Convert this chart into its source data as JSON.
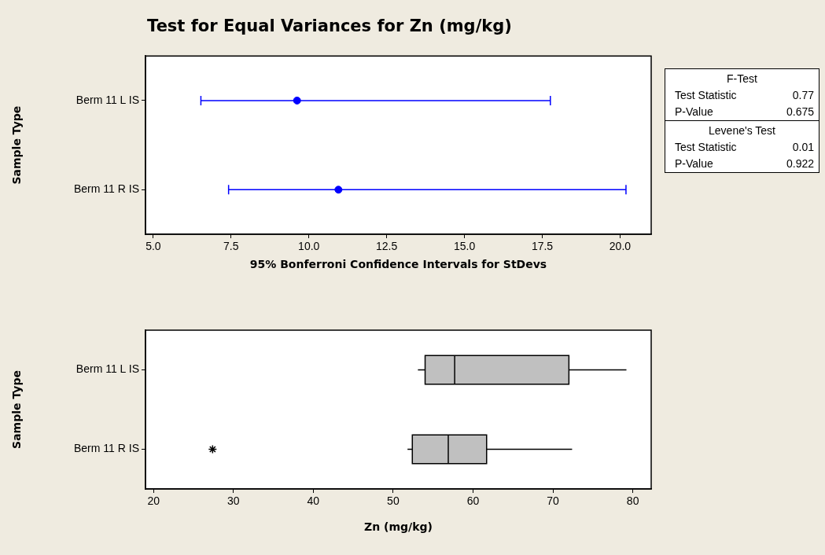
{
  "chart_data": [
    {
      "type": "scatter",
      "title": "Test for Equal Variances for Zn (mg/kg)",
      "orientation": "horizontal",
      "categories": [
        "Berm 11 L IS",
        "Berm 11 R IS"
      ],
      "values": [
        9.62,
        10.95
      ],
      "errors": [
        [
          6.53,
          17.76
        ],
        [
          7.42,
          20.19
        ]
      ],
      "color": "#0000ff",
      "marker": "circle",
      "xlim": [
        4.75,
        21.0
      ],
      "xticks": [
        {
          "value": 5,
          "label": "5.0"
        },
        7.5,
        {
          "value": 10,
          "label": "10.0"
        },
        12.5,
        {
          "value": 15,
          "label": "15.0"
        },
        17.5,
        {
          "value": 20,
          "label": "20.0"
        }
      ],
      "xlabel": "95% Bonferroni Confidence Intervals for StDevs",
      "ylabel": "Sample Type"
    },
    {
      "type": "box",
      "orientation": "horizontal",
      "categories": [
        "Berm 11 L IS",
        "Berm 11 R IS"
      ],
      "color": "#c0c0c0",
      "marker": "star",
      "boxes": [
        {
          "low": 53.1,
          "q1": 54.0,
          "median": 57.7,
          "q3": 72.0,
          "high": 79.2
        },
        {
          "low": 51.8,
          "q1": 52.4,
          "median": 56.9,
          "q3": 61.7,
          "high": 72.4,
          "outliers": [
            27.4
          ]
        }
      ],
      "xlim": [
        19,
        82.3
      ],
      "xticks": [
        20,
        30,
        40,
        50,
        60,
        70,
        80
      ],
      "xlabel": "Zn (mg/kg)",
      "ylabel": "Sample Type"
    },
    {
      "type": "other",
      "annotations": [
        "F-Test",
        "Test Statistic",
        "0.77",
        "P-Value",
        "0.675",
        "Levene's Test",
        "Test Statistic",
        "0.01",
        "P-Value",
        "0.922"
      ]
    }
  ]
}
